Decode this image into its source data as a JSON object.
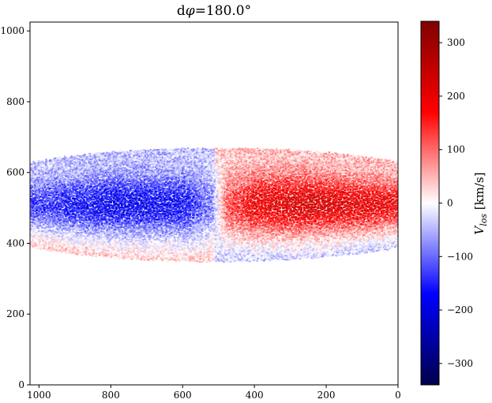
{
  "chart_data": {
    "type": "heatmap",
    "title_prefix": "d",
    "title_symbol": "φ",
    "title_suffix": "=180.0°",
    "x_axis": {
      "range": [
        1025,
        0
      ],
      "ticks": [
        1000,
        800,
        600,
        400,
        200,
        0
      ],
      "tick_labels": [
        "1000",
        "800",
        "600",
        "400",
        "200",
        "0"
      ]
    },
    "y_axis": {
      "range": [
        0,
        1025
      ],
      "ticks": [
        0,
        200,
        400,
        600,
        800,
        1000
      ],
      "tick_labels": [
        "0",
        "200",
        "400",
        "600",
        "800",
        "1000"
      ]
    },
    "colorbar": {
      "label_main": "V",
      "label_sub": "los",
      "label_unit": " [km/s]",
      "range": [
        -340,
        340
      ],
      "ticks": [
        -300,
        -200,
        -100,
        0,
        100,
        200,
        300
      ],
      "tick_labels": [
        "−300",
        "−200",
        "−100",
        "0",
        "100",
        "200",
        "300"
      ],
      "colormap": [
        "#00004c",
        "#0000ff",
        "#ffffff",
        "#ff0000",
        "#7f0000"
      ]
    },
    "velocity_field": {
      "disk_x_range": [
        0,
        1025
      ],
      "disk_center_y": 512,
      "disk_center_x": 510,
      "outer_half_thickness_y": 160,
      "midplane_velocity": [
        {
          "x": 1000,
          "v": -140
        },
        {
          "x": 800,
          "v": -190
        },
        {
          "x": 600,
          "v": -170
        },
        {
          "x": 520,
          "v": -80
        },
        {
          "x": 480,
          "v": 120
        },
        {
          "x": 400,
          "v": 200
        },
        {
          "x": 250,
          "v": 230
        },
        {
          "x": 0,
          "v": 190
        }
      ]
    }
  }
}
